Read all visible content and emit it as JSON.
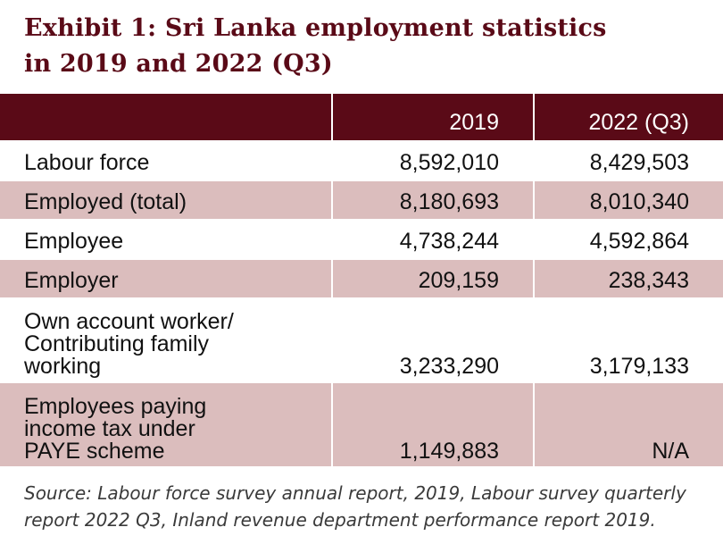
{
  "title_line1": "Exhibit 1: Sri Lanka employment statistics",
  "title_line2": "in 2019 and 2022 (Q3)",
  "colors": {
    "title_text": "#5a0a17",
    "header_bg": "#5a0a17",
    "header_text": "#ffffff",
    "row_shaded_bg": "#dbbdbd",
    "row_plain_bg": "#ffffff",
    "source_text": "#3a3a3a"
  },
  "chart_data": {
    "type": "table",
    "title": "Exhibit 1: Sri Lanka employment statistics in 2019 and 2022 (Q3)",
    "columns": [
      "",
      "2019",
      "2022 (Q3)"
    ],
    "rows": [
      {
        "label": "Labour force",
        "values": [
          "8,592,010",
          "8,429,503"
        ]
      },
      {
        "label": "Employed (total)",
        "values": [
          "8,180,693",
          "8,010,340"
        ]
      },
      {
        "label": "Employee",
        "values": [
          "4,738,244",
          "4,592,864"
        ]
      },
      {
        "label": "Employer",
        "values": [
          "209,159",
          "238,343"
        ]
      },
      {
        "label": "Own account worker/ Contributing family working",
        "values": [
          "3,233,290",
          "3,179,133"
        ]
      },
      {
        "label": "Employees paying income tax under PAYE scheme",
        "values": [
          "1,149,883",
          "N/A"
        ]
      }
    ],
    "source": "Source: Labour force survey annual report, 2019, Labour survey quarterly report 2022 Q3, Inland revenue department performance report 2019."
  },
  "row_lines": {
    "r4": [
      "Own account worker/",
      "Contributing family",
      "working"
    ],
    "r5": [
      "Employees paying",
      "income tax under",
      "PAYE scheme"
    ]
  },
  "source_line1": "Source: Labour force survey annual report, 2019, Labour survey quarterly",
  "source_line2": "report 2022 Q3, Inland revenue department performance report 2019."
}
